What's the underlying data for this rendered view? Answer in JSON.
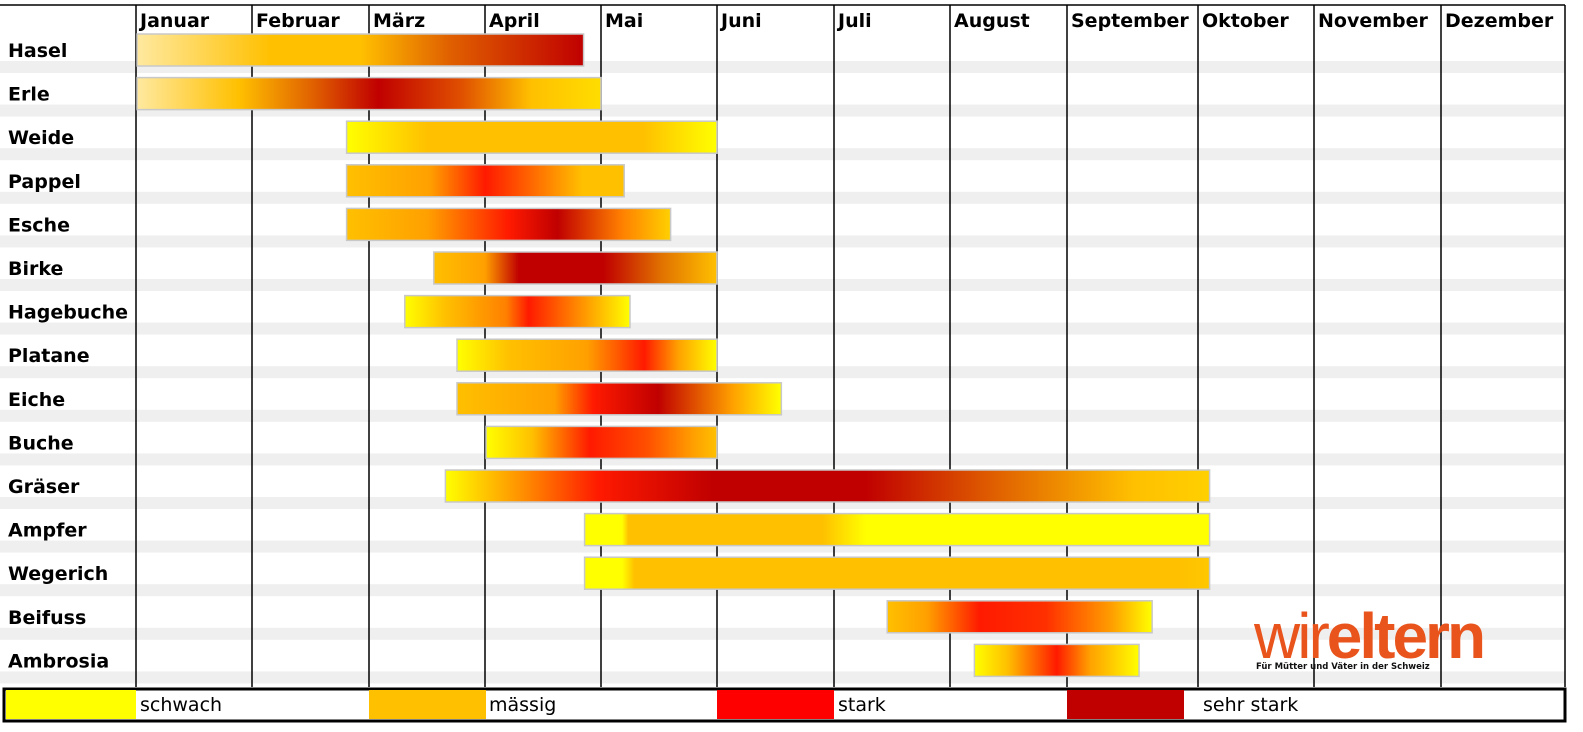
{
  "chart_data": {
    "type": "timeline",
    "months": [
      "Januar",
      "Februar",
      "März",
      "April",
      "Mai",
      "Juni",
      "Juli",
      "August",
      "September",
      "Oktober",
      "November",
      "Dezember"
    ],
    "levels": [
      "schwach",
      "mässig",
      "stark",
      "sehr stark"
    ],
    "level_colors": [
      "#ffff00",
      "#ffc000",
      "#ff0000",
      "#c00000"
    ],
    "series": [
      {
        "name": "Hasel",
        "start": 0.0,
        "end": 3.85,
        "gradient": [
          [
            0.0,
            "#ffe9a0"
          ],
          [
            0.3,
            "#ffc000"
          ],
          [
            0.5,
            "#ffc000"
          ],
          [
            0.7,
            "#e06000"
          ],
          [
            1.0,
            "#c00000"
          ]
        ]
      },
      {
        "name": "Erle",
        "start": 0.0,
        "end": 4.0,
        "gradient": [
          [
            0.0,
            "#ffe9a0"
          ],
          [
            0.22,
            "#ffc000"
          ],
          [
            0.38,
            "#e06000"
          ],
          [
            0.52,
            "#c00000"
          ],
          [
            0.7,
            "#e05000"
          ],
          [
            0.85,
            "#ffc000"
          ],
          [
            1.0,
            "#ffdd00"
          ]
        ]
      },
      {
        "name": "Weide",
        "start": 1.8,
        "end": 5.0,
        "gradient": [
          [
            0.0,
            "#ffff00"
          ],
          [
            0.22,
            "#ffc000"
          ],
          [
            0.8,
            "#ffc000"
          ],
          [
            1.0,
            "#ffff00"
          ]
        ]
      },
      {
        "name": "Pappel",
        "start": 1.8,
        "end": 4.2,
        "gradient": [
          [
            0.0,
            "#ffc000"
          ],
          [
            0.3,
            "#ffa000"
          ],
          [
            0.5,
            "#ff1a00"
          ],
          [
            0.65,
            "#ff6000"
          ],
          [
            0.85,
            "#ffc000"
          ],
          [
            1.0,
            "#ffc000"
          ]
        ]
      },
      {
        "name": "Esche",
        "start": 1.8,
        "end": 4.6,
        "gradient": [
          [
            0.0,
            "#ffc000"
          ],
          [
            0.25,
            "#ffa000"
          ],
          [
            0.5,
            "#ff1a00"
          ],
          [
            0.65,
            "#c00000"
          ],
          [
            0.85,
            "#ff8000"
          ],
          [
            1.0,
            "#ffd000"
          ]
        ]
      },
      {
        "name": "Birke",
        "start": 2.55,
        "end": 5.0,
        "gradient": [
          [
            0.0,
            "#ffc000"
          ],
          [
            0.18,
            "#ffa000"
          ],
          [
            0.3,
            "#c00000"
          ],
          [
            0.6,
            "#c00000"
          ],
          [
            0.8,
            "#e07000"
          ],
          [
            1.0,
            "#ffc000"
          ]
        ]
      },
      {
        "name": "Hagebuche",
        "start": 2.3,
        "end": 4.25,
        "gradient": [
          [
            0.0,
            "#ffff00"
          ],
          [
            0.18,
            "#ffc000"
          ],
          [
            0.45,
            "#ff8000"
          ],
          [
            0.55,
            "#ff1a00"
          ],
          [
            0.75,
            "#ff8000"
          ],
          [
            1.0,
            "#ffff00"
          ]
        ]
      },
      {
        "name": "Platane",
        "start": 2.75,
        "end": 5.0,
        "gradient": [
          [
            0.0,
            "#ffff00"
          ],
          [
            0.2,
            "#ffc000"
          ],
          [
            0.5,
            "#ffa000"
          ],
          [
            0.72,
            "#ff1a00"
          ],
          [
            0.85,
            "#ffa000"
          ],
          [
            1.0,
            "#ffff00"
          ]
        ]
      },
      {
        "name": "Eiche",
        "start": 2.75,
        "end": 5.55,
        "gradient": [
          [
            0.0,
            "#ffc000"
          ],
          [
            0.3,
            "#ffa000"
          ],
          [
            0.42,
            "#ff1a00"
          ],
          [
            0.62,
            "#c00000"
          ],
          [
            0.85,
            "#ffa000"
          ],
          [
            1.0,
            "#ffff00"
          ]
        ]
      },
      {
        "name": "Buche",
        "start": 3.0,
        "end": 5.0,
        "gradient": [
          [
            0.0,
            "#ffff00"
          ],
          [
            0.2,
            "#ffc000"
          ],
          [
            0.45,
            "#ff1a00"
          ],
          [
            0.7,
            "#ff5000"
          ],
          [
            0.9,
            "#ffa000"
          ],
          [
            1.0,
            "#ffc000"
          ]
        ]
      },
      {
        "name": "Gräser",
        "start": 2.65,
        "end": 9.1,
        "gradient": [
          [
            0.0,
            "#ffff00"
          ],
          [
            0.1,
            "#ff9000"
          ],
          [
            0.2,
            "#ff1a00"
          ],
          [
            0.35,
            "#c00000"
          ],
          [
            0.55,
            "#c00000"
          ],
          [
            0.72,
            "#e06000"
          ],
          [
            0.9,
            "#ffc000"
          ],
          [
            1.0,
            "#ffd000"
          ]
        ]
      },
      {
        "name": "Ampfer",
        "start": 3.85,
        "end": 9.1,
        "gradient": [
          [
            0.0,
            "#ffff00"
          ],
          [
            0.06,
            "#ffff00"
          ],
          [
            0.07,
            "#ffc000"
          ],
          [
            0.38,
            "#ffc000"
          ],
          [
            0.45,
            "#ffff00"
          ],
          [
            1.0,
            "#ffff00"
          ]
        ]
      },
      {
        "name": "Wegerich",
        "start": 3.85,
        "end": 9.1,
        "gradient": [
          [
            0.0,
            "#ffff00"
          ],
          [
            0.06,
            "#ffff00"
          ],
          [
            0.08,
            "#ffc000"
          ],
          [
            0.95,
            "#ffc000"
          ],
          [
            1.0,
            "#ffc800"
          ]
        ]
      },
      {
        "name": "Beifuss",
        "start": 6.45,
        "end": 8.65,
        "gradient": [
          [
            0.0,
            "#ffc000"
          ],
          [
            0.15,
            "#ffa000"
          ],
          [
            0.35,
            "#ff1a00"
          ],
          [
            0.6,
            "#ff3000"
          ],
          [
            0.85,
            "#ffa000"
          ],
          [
            1.0,
            "#ffff00"
          ]
        ]
      },
      {
        "name": "Ambrosia",
        "start": 7.2,
        "end": 8.55,
        "gradient": [
          [
            0.0,
            "#ffff00"
          ],
          [
            0.2,
            "#ffc000"
          ],
          [
            0.5,
            "#ff1a00"
          ],
          [
            0.7,
            "#ffa000"
          ],
          [
            1.0,
            "#ffff00"
          ]
        ]
      }
    ]
  },
  "logo": {
    "word_light": "wir",
    "word_bold": "eltern",
    "tagline": "Für Mütter und Väter in der Schweiz"
  }
}
